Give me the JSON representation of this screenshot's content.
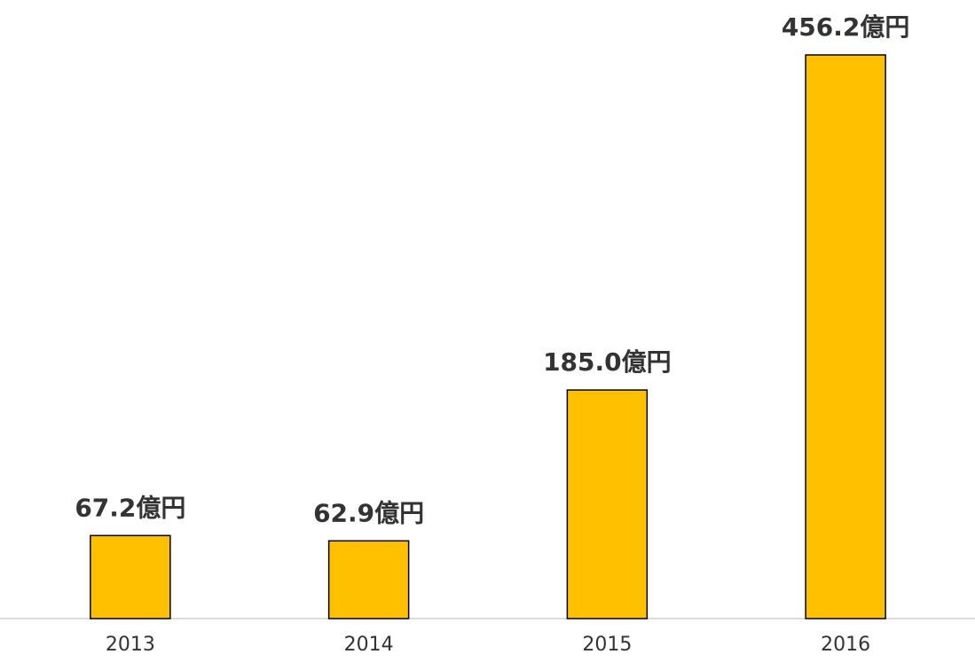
{
  "chart_data": {
    "type": "bar",
    "categories": [
      "2013",
      "2014",
      "2015",
      "2016"
    ],
    "values": [
      67.2,
      62.9,
      185.0,
      456.2
    ],
    "value_labels": [
      "67.2億円",
      "62.9億円",
      "185.0億円",
      "456.2億円"
    ],
    "color": "#ffc000"
  }
}
